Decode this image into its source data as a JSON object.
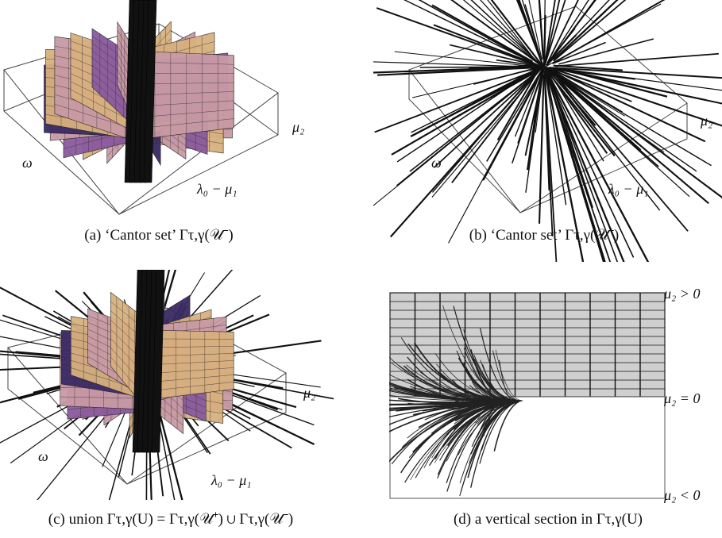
{
  "panels": [
    {
      "id": "a",
      "caption": "(a) ‘Cantor set’ Γτ,γ(𝒰⁻)",
      "labels": {
        "mu2": "μ₂",
        "omega": "ω",
        "lambda_mu": "λ₀ − μ₁"
      }
    },
    {
      "id": "b",
      "caption": "(b) ‘Cantor set’ Γτ,γ(𝒰⁺)",
      "labels": {
        "mu2": "μ₂",
        "omega": "ω",
        "lambda_mu": "λ₀ − μ₁"
      }
    },
    {
      "id": "c",
      "caption": "(c) union Γτ,γ(U) = Γτ,γ(𝒰⁺) ∪ Γτ,γ(𝒰⁻)",
      "labels": {
        "mu2": "μ₂",
        "omega": "ω",
        "lambda_mu": "λ₀ − μ₁"
      }
    },
    {
      "id": "d",
      "caption": "(d) a vertical section in Γτ,γ(U)",
      "labels": {
        "top": "μ₂ > 0",
        "mid": "μ₂ = 0",
        "bottom": "μ₂ < 0"
      }
    }
  ],
  "colors": {
    "pink": "#c99aa5",
    "tan": "#d8b07e",
    "violet": "#8a5a9e",
    "dark_violet": "#3a2a66",
    "grid_gray": "#cfcfcf",
    "line": "#111111"
  }
}
